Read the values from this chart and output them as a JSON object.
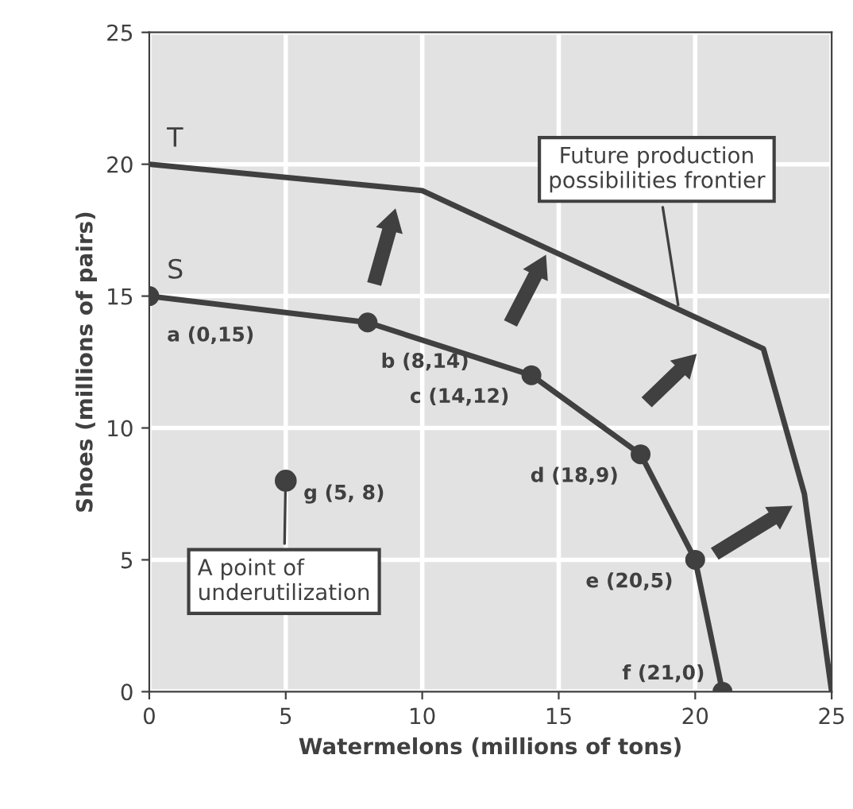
{
  "chart_data": {
    "type": "line",
    "xlabel": "Watermelons (millions of tons)",
    "ylabel": "Shoes (millions of pairs)",
    "xlim": [
      0,
      25
    ],
    "ylim": [
      0,
      25
    ],
    "xticks": [
      0,
      5,
      10,
      15,
      20,
      25
    ],
    "yticks": [
      0,
      5,
      10,
      15,
      20,
      25
    ],
    "grid": true,
    "legend": false,
    "series": [
      {
        "name": "S",
        "color": "#404040",
        "marker": "circle",
        "x": [
          0,
          8,
          14,
          18,
          20,
          21
        ],
        "values": [
          15,
          14,
          12,
          9,
          5,
          0
        ]
      },
      {
        "name": "T",
        "color": "#404040",
        "marker": "none",
        "x": [
          0,
          10,
          22.5,
          24,
          25
        ],
        "values": [
          20,
          19,
          13,
          7.5,
          0
        ]
      },
      {
        "type": "scatter",
        "color": "#404040",
        "marker": "circle",
        "x": [
          5
        ],
        "values": [
          8
        ]
      }
    ],
    "annotations": [
      {
        "text": "a (0,15)",
        "x": 0,
        "y": 15
      },
      {
        "text": "b (8,14)",
        "x": 8,
        "y": 14
      },
      {
        "text": "c (14,12)",
        "x": 14,
        "y": 12
      },
      {
        "text": "d (18,9)",
        "x": 18,
        "y": 9
      },
      {
        "text": "e (20,5)",
        "x": 20,
        "y": 5
      },
      {
        "text": "f (21,0)",
        "x": 21,
        "y": 0
      },
      {
        "text": "g (5, 8)",
        "x": 5,
        "y": 8
      },
      {
        "text": "Future production\npossibilities frontier",
        "x": 19.4,
        "y": 14.5
      },
      {
        "text": "A point of\nunderutilization",
        "x": 5,
        "y": 8.5
      }
    ]
  }
}
